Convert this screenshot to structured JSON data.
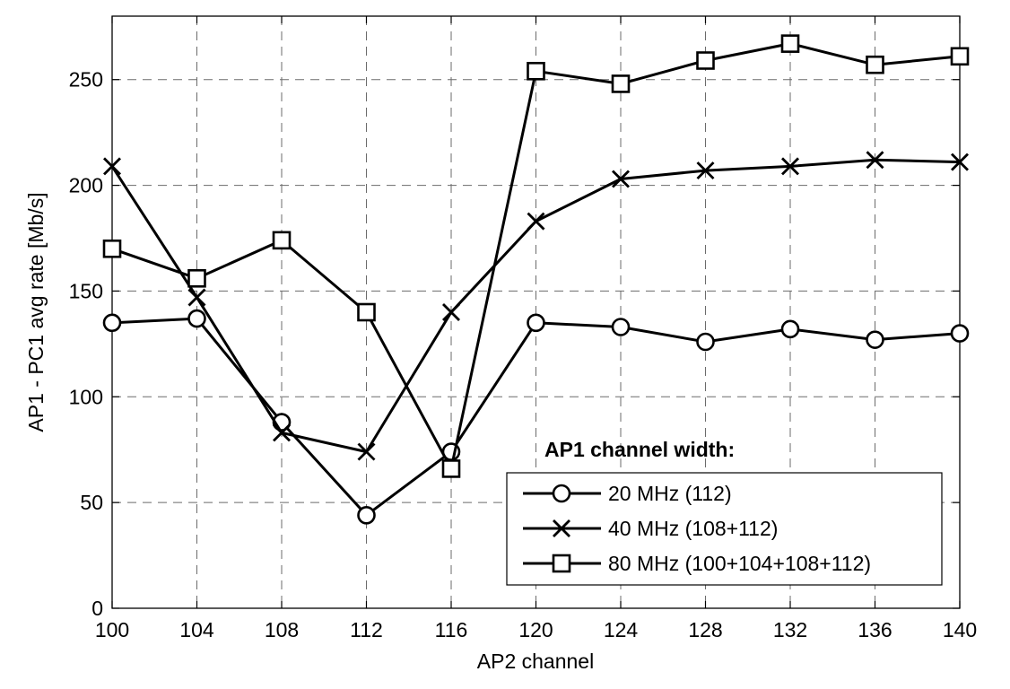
{
  "chart_data": {
    "type": "line",
    "xlabel": "AP2 channel",
    "ylabel": "AP1 - PC1 avg rate [Mb/s]",
    "x": [
      100,
      104,
      108,
      112,
      116,
      120,
      124,
      128,
      132,
      136,
      140
    ],
    "xticks": [
      "100",
      "104",
      "108",
      "112",
      "116",
      "120",
      "124",
      "128",
      "132",
      "136",
      "140"
    ],
    "yticks": [
      "0",
      "50",
      "100",
      "150",
      "200",
      "250"
    ],
    "xlim": [
      100,
      140
    ],
    "ylim": [
      0,
      280
    ],
    "grid": true,
    "legend_title": "AP1 channel width:",
    "legend_position": "lower-right",
    "series": [
      {
        "name": "20 MHz (112)",
        "marker": "circle",
        "values": [
          135,
          137,
          88,
          44,
          74,
          135,
          133,
          126,
          132,
          127,
          130
        ]
      },
      {
        "name": "40 MHz (108+112)",
        "marker": "x",
        "values": [
          209,
          147,
          83,
          74,
          140,
          183,
          203,
          207,
          209,
          212,
          211
        ]
      },
      {
        "name": "80 MHz (100+104+108+112)",
        "marker": "square",
        "values": [
          170,
          156,
          174,
          140,
          66,
          254,
          248,
          259,
          267,
          257,
          261
        ]
      }
    ]
  }
}
